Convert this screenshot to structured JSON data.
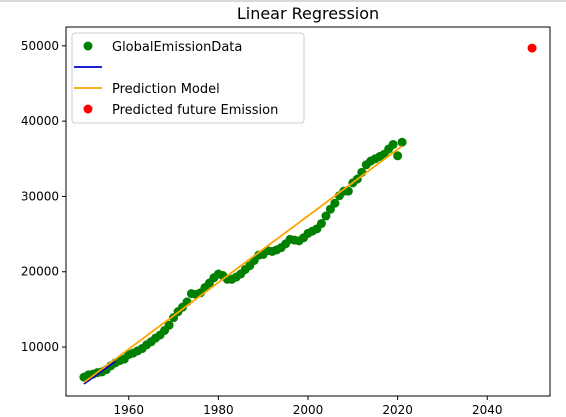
{
  "chart_data": {
    "type": "scatter",
    "title": "Linear Regression",
    "xlabel": "",
    "ylabel": "",
    "xlim": [
      1946,
      2054
    ],
    "ylim": [
      3500,
      52500
    ],
    "xticks": [
      1960,
      1980,
      2000,
      2020,
      2040
    ],
    "yticks": [
      10000,
      20000,
      30000,
      40000,
      50000
    ],
    "xtick_labels": [
      "1960",
      "1980",
      "2000",
      "2020",
      "2040"
    ],
    "ytick_labels": [
      "10000",
      "20000",
      "30000",
      "40000",
      "50000"
    ],
    "grid": false,
    "legend_position": "top-left",
    "series": [
      {
        "name": "GlobalEmissionData",
        "kind": "scatter",
        "color": "#008000",
        "x": [
          1950,
          1951,
          1952,
          1953,
          1954,
          1955,
          1956,
          1957,
          1958,
          1959,
          1960,
          1961,
          1962,
          1963,
          1964,
          1965,
          1966,
          1967,
          1968,
          1969,
          1970,
          1971,
          1972,
          1973,
          1974,
          1975,
          1976,
          1977,
          1978,
          1979,
          1980,
          1981,
          1982,
          1983,
          1984,
          1985,
          1986,
          1987,
          1988,
          1989,
          1990,
          1991,
          1992,
          1993,
          1994,
          1995,
          1996,
          1997,
          1998,
          1999,
          2000,
          2001,
          2002,
          2003,
          2004,
          2005,
          2006,
          2007,
          2008,
          2009,
          2010,
          2011,
          2012,
          2013,
          2014,
          2015,
          2016,
          2017,
          2018,
          2019,
          2020,
          2021
        ],
        "y": [
          6000,
          6300,
          6400,
          6600,
          6700,
          7000,
          7500,
          7900,
          8200,
          8400,
          9000,
          9200,
          9500,
          9800,
          10300,
          10700,
          11200,
          11600,
          12200,
          12900,
          13900,
          14700,
          15300,
          16000,
          17100,
          17000,
          17200,
          17900,
          18500,
          19200,
          19700,
          19500,
          19000,
          19000,
          19300,
          19700,
          20300,
          20800,
          21500,
          22200,
          22300,
          22800,
          22700,
          22900,
          23200,
          23700,
          24300,
          24200,
          24100,
          24500,
          25100,
          25400,
          25700,
          26400,
          27400,
          28300,
          29100,
          30100,
          30700,
          30700,
          31800,
          32300,
          33200,
          34200,
          34700,
          35000,
          35300,
          35600,
          36300,
          36900,
          35400,
          37200
        ]
      },
      {
        "name": "",
        "kind": "line",
        "color": "#0000cc",
        "x": [
          1950,
          1957
        ],
        "y": [
          5100,
          8100
        ]
      },
      {
        "name": "Prediction Model",
        "kind": "line",
        "color": "#ffa500",
        "x": [
          1950,
          2021
        ],
        "y": [
          5300,
          36700
        ]
      },
      {
        "name": "Predicted future Emission",
        "kind": "scatter",
        "color": "#ff0000",
        "x": [
          2050
        ],
        "y": [
          49700
        ]
      }
    ]
  }
}
